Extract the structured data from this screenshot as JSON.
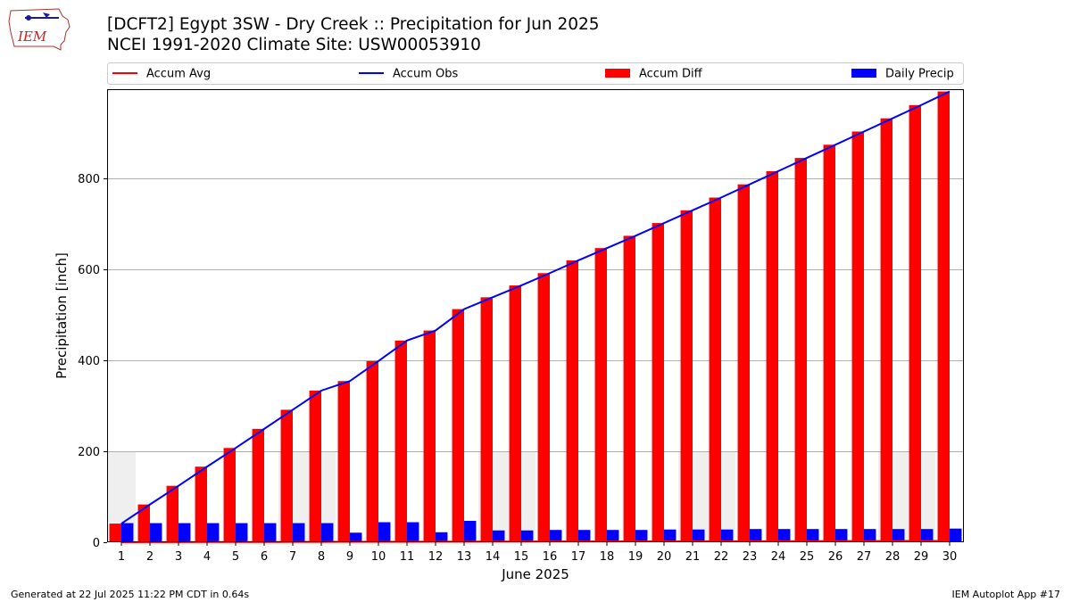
{
  "logo": {
    "text": "IEM"
  },
  "chart_data": {
    "type": "bar",
    "title": "[DCFT2] Egypt 3SW - Dry Creek :: Precipitation for Jun 2025",
    "subtitle": "NCEI 1991-2020 Climate Site: USW00053910",
    "xlabel": "June 2025",
    "ylabel": "Precipitation [inch]",
    "ylim": [
      0,
      995
    ],
    "yticks": [
      0,
      200,
      400,
      600,
      800
    ],
    "grid": true,
    "legend_position": "top",
    "categories": [
      "1",
      "2",
      "3",
      "4",
      "5",
      "6",
      "7",
      "8",
      "9",
      "10",
      "11",
      "12",
      "13",
      "14",
      "15",
      "16",
      "17",
      "18",
      "19",
      "20",
      "21",
      "22",
      "23",
      "24",
      "25",
      "26",
      "27",
      "28",
      "29",
      "30"
    ],
    "weekend_shading": [
      [
        1,
        1
      ],
      [
        7,
        8
      ],
      [
        14,
        15
      ],
      [
        21,
        22
      ],
      [
        28,
        29
      ]
    ],
    "series": [
      {
        "name": "Accum Avg",
        "type": "line",
        "color": "#ff0000",
        "values": [
          0.1,
          0.2,
          0.3,
          0.4,
          0.5,
          0.6,
          0.7,
          0.8,
          0.9,
          1.0,
          1.1,
          1.2,
          1.3,
          1.4,
          1.5,
          1.6,
          1.7,
          1.8,
          1.9,
          2.0,
          2.1,
          2.2,
          2.3,
          2.4,
          2.5,
          2.6,
          2.7,
          2.8,
          2.9,
          3.0
        ]
      },
      {
        "name": "Accum Obs",
        "type": "line",
        "color": "#0000ff",
        "values": [
          41,
          83,
          124,
          166,
          207,
          249,
          291,
          333,
          354,
          398,
          443,
          465,
          512,
          538,
          564,
          591,
          619,
          646,
          673,
          701,
          729,
          757,
          786,
          815,
          844,
          873,
          902,
          931,
          960,
          990
        ]
      },
      {
        "name": "Accum Diff",
        "type": "bar",
        "color": "#ff0000",
        "values": [
          41,
          83,
          124,
          166,
          207,
          249,
          291,
          333,
          354,
          398,
          443,
          465,
          512,
          538,
          564,
          591,
          619,
          646,
          673,
          701,
          729,
          757,
          786,
          815,
          844,
          873,
          902,
          931,
          960,
          990
        ]
      },
      {
        "name": "Daily Precip",
        "type": "bar",
        "color": "#0000ff",
        "values": [
          42,
          42,
          42,
          42,
          42,
          42,
          42,
          42,
          21,
          44,
          44,
          22,
          47,
          26,
          26,
          27,
          27,
          27,
          27,
          28,
          28,
          28,
          29,
          29,
          29,
          29,
          29,
          29,
          29,
          30
        ]
      }
    ]
  },
  "footer": {
    "left": "Generated at 22 Jul 2025 11:22 PM CDT in 0.64s",
    "right": "IEM Autoplot App #17"
  }
}
